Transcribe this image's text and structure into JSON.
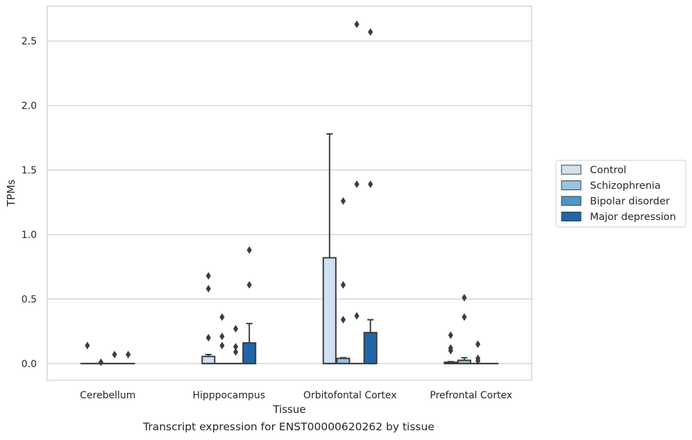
{
  "caption": "Transcript expression for ENST00000620262 by tissue",
  "chart_data": {
    "type": "box",
    "xlabel": "Tissue",
    "ylabel": "TPMs",
    "ylim": [
      -0.13,
      2.77
    ],
    "yticks": [
      "0.0",
      "0.5",
      "1.0",
      "1.5",
      "2.0",
      "2.5"
    ],
    "grid": "horizontal",
    "legend_position": "right",
    "categories": [
      "Cerebellum",
      "Hipppocampus",
      "Orbitofontal Cortex",
      "Prefrontal Cortex"
    ],
    "series": [
      {
        "name": "Control",
        "color": "#d0e1f2",
        "boxes": [
          {
            "q1": 0,
            "median": 0,
            "q3": 0,
            "whisker_low": 0,
            "whisker_high": 0,
            "outliers": [
              0.14
            ]
          },
          {
            "q1": 0,
            "median": 0,
            "q3": 0.055,
            "whisker_low": 0,
            "whisker_high": 0.07,
            "outliers": [
              0.2,
              0.58,
              0.68
            ]
          },
          {
            "q1": 0,
            "median": 0,
            "q3": 0.82,
            "whisker_low": 0,
            "whisker_high": 1.78,
            "outliers": []
          },
          {
            "q1": 0,
            "median": 0,
            "q3": 0.01,
            "whisker_low": 0,
            "whisker_high": 0.015,
            "outliers": [
              0.1,
              0.12,
              0.22
            ]
          }
        ]
      },
      {
        "name": "Schizophrenia",
        "color": "#94c4df",
        "boxes": [
          {
            "q1": 0,
            "median": 0,
            "q3": 0,
            "whisker_low": 0,
            "whisker_high": 0,
            "outliers": [
              0.01
            ]
          },
          {
            "q1": 0,
            "median": 0,
            "q3": 0,
            "whisker_low": 0,
            "whisker_high": 0,
            "outliers": [
              0.14,
              0.21,
              0.36
            ]
          },
          {
            "q1": 0,
            "median": 0,
            "q3": 0.04,
            "whisker_low": 0,
            "whisker_high": 0.045,
            "outliers": [
              0.34,
              0.61,
              1.26
            ]
          },
          {
            "q1": 0,
            "median": 0,
            "q3": 0.025,
            "whisker_low": 0,
            "whisker_high": 0.045,
            "outliers": [
              0.36,
              0.51
            ]
          }
        ]
      },
      {
        "name": "Bipolar disorder",
        "color": "#4a98c9",
        "boxes": [
          {
            "q1": 0,
            "median": 0,
            "q3": 0,
            "whisker_low": 0,
            "whisker_high": 0,
            "outliers": [
              0.07
            ]
          },
          {
            "q1": 0,
            "median": 0,
            "q3": 0,
            "whisker_low": 0,
            "whisker_high": 0,
            "outliers": [
              0.09,
              0.13,
              0.27
            ]
          },
          {
            "q1": 0,
            "median": 0,
            "q3": 0,
            "whisker_low": 0,
            "whisker_high": 0,
            "outliers": [
              0.37,
              1.39,
              2.63
            ]
          },
          {
            "q1": 0,
            "median": 0,
            "q3": 0,
            "whisker_low": 0,
            "whisker_high": 0,
            "outliers": [
              0.02,
              0.04,
              0.15
            ]
          }
        ]
      },
      {
        "name": "Major depression",
        "color": "#2164ab",
        "boxes": [
          {
            "q1": 0,
            "median": 0,
            "q3": 0,
            "whisker_low": 0,
            "whisker_high": 0,
            "outliers": [
              0.07
            ]
          },
          {
            "q1": 0,
            "median": 0,
            "q3": 0.16,
            "whisker_low": 0,
            "whisker_high": 0.31,
            "outliers": [
              0.61,
              0.88
            ]
          },
          {
            "q1": 0,
            "median": 0,
            "q3": 0.24,
            "whisker_low": 0,
            "whisker_high": 0.34,
            "outliers": [
              1.39,
              2.57
            ]
          },
          {
            "q1": 0,
            "median": 0,
            "q3": 0,
            "whisker_low": 0,
            "whisker_high": 0,
            "outliers": []
          }
        ]
      }
    ]
  }
}
